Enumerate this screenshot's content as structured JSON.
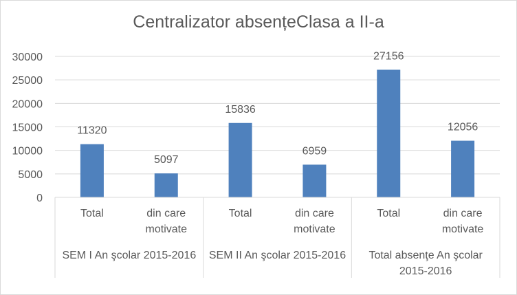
{
  "chart_data": {
    "type": "bar",
    "title": "Centralizator absențeClasa a II-a",
    "xlabel": "",
    "ylabel": "",
    "ylim": [
      0,
      30000
    ],
    "yticks": [
      0,
      5000,
      10000,
      15000,
      20000,
      25000,
      30000
    ],
    "grid": true,
    "legend": "none",
    "bar_color": "#4f81bd",
    "groups": [
      {
        "label": "SEM I An şcolar 2015-2016",
        "label_lines": [
          "SEM I An şcolar 2015-2016"
        ]
      },
      {
        "label": "SEM II An şcolar 2015-2016",
        "label_lines": [
          "SEM II An şcolar 2015-2016"
        ]
      },
      {
        "label": "Total absenţe An şcolar 2015-2016",
        "label_lines": [
          "Total absenţe An şcolar",
          "2015-2016"
        ]
      }
    ],
    "categories": [
      {
        "label": "Total",
        "label_lines": [
          "Total"
        ],
        "group": 0,
        "value": 11320
      },
      {
        "label": "din care motivate",
        "label_lines": [
          "din care",
          "motivate"
        ],
        "group": 0,
        "value": 5097
      },
      {
        "label": "Total",
        "label_lines": [
          "Total"
        ],
        "group": 1,
        "value": 15836
      },
      {
        "label": "din care motivate",
        "label_lines": [
          "din care",
          "motivate"
        ],
        "group": 1,
        "value": 6959
      },
      {
        "label": "Total",
        "label_lines": [
          "Total"
        ],
        "group": 2,
        "value": 27156
      },
      {
        "label": "din care motivate",
        "label_lines": [
          "din care",
          "motivate"
        ],
        "group": 2,
        "value": 12056
      }
    ]
  }
}
